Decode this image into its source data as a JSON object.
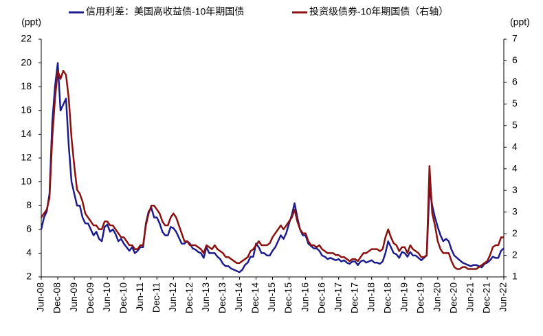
{
  "chart_data": {
    "type": "line",
    "left_unit": "(ppt)",
    "right_unit": "(ppt)",
    "x": [
      "Jun-08",
      "Jul-08",
      "Aug-08",
      "Sep-08",
      "Oct-08",
      "Nov-08",
      "Dec-08",
      "Jan-09",
      "Feb-09",
      "Mar-09",
      "Apr-09",
      "May-09",
      "Jun-09",
      "Jul-09",
      "Aug-09",
      "Sep-09",
      "Oct-09",
      "Nov-09",
      "Dec-09",
      "Jan-10",
      "Feb-10",
      "Mar-10",
      "Apr-10",
      "May-10",
      "Jun-10",
      "Jul-10",
      "Aug-10",
      "Sep-10",
      "Oct-10",
      "Nov-10",
      "Dec-10",
      "Jan-11",
      "Feb-11",
      "Mar-11",
      "Apr-11",
      "May-11",
      "Jun-11",
      "Jul-11",
      "Aug-11",
      "Sep-11",
      "Oct-11",
      "Nov-11",
      "Dec-11",
      "Jan-12",
      "Feb-12",
      "Mar-12",
      "Apr-12",
      "May-12",
      "Jun-12",
      "Jul-12",
      "Aug-12",
      "Sep-12",
      "Oct-12",
      "Nov-12",
      "Dec-12",
      "Jan-13",
      "Feb-13",
      "Mar-13",
      "Apr-13",
      "May-13",
      "Jun-13",
      "Jul-13",
      "Aug-13",
      "Sep-13",
      "Oct-13",
      "Nov-13",
      "Dec-13",
      "Jan-14",
      "Feb-14",
      "Mar-14",
      "Apr-14",
      "May-14",
      "Jun-14",
      "Jul-14",
      "Aug-14",
      "Sep-14",
      "Oct-14",
      "Nov-14",
      "Dec-14",
      "Jan-15",
      "Feb-15",
      "Mar-15",
      "Apr-15",
      "May-15",
      "Jun-15",
      "Jul-15",
      "Aug-15",
      "Sep-15",
      "Oct-15",
      "Nov-15",
      "Dec-15",
      "Jan-16",
      "Feb-16",
      "Mar-16",
      "Apr-16",
      "May-16",
      "Jun-16",
      "Jul-16",
      "Aug-16",
      "Sep-16",
      "Oct-16",
      "Nov-16",
      "Dec-16",
      "Jan-17",
      "Feb-17",
      "Mar-17",
      "Apr-17",
      "May-17",
      "Jun-17",
      "Jul-17",
      "Aug-17",
      "Sep-17",
      "Oct-17",
      "Nov-17",
      "Dec-17",
      "Jan-18",
      "Feb-18",
      "Mar-18",
      "Apr-18",
      "May-18",
      "Jun-18",
      "Jul-18",
      "Aug-18",
      "Sep-18",
      "Oct-18",
      "Nov-18",
      "Dec-18",
      "Jan-19",
      "Feb-19",
      "Mar-19",
      "Apr-19",
      "May-19",
      "Jun-19",
      "Jul-19",
      "Aug-19",
      "Sep-19",
      "Oct-19",
      "Nov-19",
      "Dec-19",
      "Jan-20",
      "Feb-20",
      "Mar-20",
      "Apr-20",
      "May-20",
      "Jun-20",
      "Jul-20",
      "Aug-20",
      "Sep-20",
      "Oct-20",
      "Nov-20",
      "Dec-20",
      "Jan-21",
      "Feb-21",
      "Mar-21",
      "Apr-21",
      "May-21",
      "Jun-21",
      "Jul-21",
      "Aug-21",
      "Sep-21",
      "Oct-21",
      "Nov-21",
      "Dec-21",
      "Jan-22",
      "Feb-22",
      "Mar-22",
      "Apr-22",
      "May-22",
      "Jun-22"
    ],
    "series": [
      {
        "name": "信用利差：美国高收益债-10年期国债",
        "color": "#1c1c8c",
        "axis": "y",
        "values": [
          6,
          7,
          7.5,
          9,
          15,
          18,
          20,
          16,
          16.5,
          17,
          13,
          10,
          9,
          8,
          8,
          7,
          6.5,
          6.5,
          6,
          5.5,
          5.8,
          5.2,
          5,
          6.2,
          6.4,
          5.8,
          6,
          5.6,
          5,
          5.2,
          4.8,
          4.5,
          4.2,
          4.5,
          4,
          4.2,
          4.5,
          4.5,
          6.5,
          7.5,
          7.8,
          7,
          7,
          6.5,
          5.8,
          5.5,
          5.5,
          6.2,
          6.1,
          5.8,
          5.3,
          4.8,
          4.8,
          5,
          4.8,
          4.4,
          4.3,
          4.1,
          4,
          3.6,
          4.5,
          4,
          4,
          4,
          3.7,
          3.5,
          3.1,
          2.9,
          2.9,
          2.7,
          2.6,
          2.5,
          2.4,
          2.6,
          3,
          3.2,
          3.7,
          3.7,
          4.8,
          4.5,
          4,
          4,
          3.8,
          3.8,
          4.2,
          4.5,
          5,
          5.5,
          5.2,
          5.7,
          6.5,
          7.2,
          8.2,
          7,
          6,
          5.5,
          5.5,
          4.8,
          4.6,
          4.4,
          4.4,
          4.2,
          3.8,
          3.7,
          3.5,
          3.6,
          3.5,
          3.4,
          3.5,
          3.3,
          3.4,
          3.2,
          3.1,
          3.3,
          3.3,
          3,
          3.3,
          3.4,
          3.2,
          3.3,
          3.4,
          3.2,
          3.2,
          3.1,
          3.3,
          4,
          5,
          4.5,
          4,
          3.9,
          3.6,
          4.1,
          4,
          3.7,
          4.1,
          3.8,
          3.8,
          3.6,
          3.4,
          3.6,
          3.8,
          9.5,
          8,
          7,
          6.2,
          5.5,
          5,
          5.2,
          5,
          4.3,
          3.8,
          3.6,
          3.4,
          3.2,
          3.1,
          3,
          2.9,
          3,
          3,
          2.9,
          2.8,
          3.1,
          3.2,
          3.4,
          3.7,
          3.6,
          3.6,
          4.2,
          4.4
        ]
      },
      {
        "name": "投资级债券-10年期国债（右轴）",
        "color": "#8b1010",
        "axis": "y2",
        "values": [
          2.5,
          2.6,
          2.7,
          3,
          4.5,
          5.5,
          6.2,
          6,
          6.2,
          6.1,
          5.5,
          4.5,
          3.8,
          3.2,
          3.1,
          2.9,
          2.6,
          2.5,
          2.4,
          2.3,
          2.3,
          2.2,
          2.2,
          2.4,
          2.4,
          2.3,
          2.3,
          2.2,
          2.1,
          2,
          2,
          1.9,
          1.8,
          1.8,
          1.7,
          1.7,
          1.8,
          1.8,
          2.3,
          2.6,
          2.8,
          2.8,
          2.7,
          2.6,
          2.4,
          2.3,
          2.3,
          2.5,
          2.6,
          2.5,
          2.3,
          2.1,
          1.9,
          1.9,
          1.8,
          1.8,
          1.8,
          1.75,
          1.7,
          1.6,
          1.8,
          1.75,
          1.7,
          1.8,
          1.7,
          1.65,
          1.6,
          1.5,
          1.5,
          1.45,
          1.4,
          1.35,
          1.35,
          1.4,
          1.45,
          1.5,
          1.65,
          1.7,
          1.8,
          1.9,
          1.8,
          1.8,
          1.8,
          1.85,
          2,
          2.1,
          2.2,
          2.3,
          2.2,
          2.3,
          2.4,
          2.5,
          2.7,
          2.4,
          2.2,
          2.1,
          2.1,
          1.9,
          1.8,
          1.8,
          1.75,
          1.8,
          1.7,
          1.65,
          1.6,
          1.6,
          1.6,
          1.55,
          1.55,
          1.5,
          1.5,
          1.45,
          1.4,
          1.45,
          1.45,
          1.4,
          1.5,
          1.6,
          1.6,
          1.65,
          1.7,
          1.7,
          1.7,
          1.65,
          1.7,
          2,
          2.2,
          2,
          1.85,
          1.8,
          1.65,
          1.75,
          1.75,
          1.6,
          1.8,
          1.7,
          1.65,
          1.6,
          1.5,
          1.5,
          1.55,
          3.8,
          2.6,
          2.3,
          1.9,
          1.7,
          1.6,
          1.6,
          1.6,
          1.4,
          1.25,
          1.2,
          1.2,
          1.25,
          1.25,
          1.2,
          1.2,
          1.2,
          1.2,
          1.25,
          1.3,
          1.35,
          1.4,
          1.55,
          1.75,
          1.8,
          1.8,
          2,
          2
        ]
      }
    ],
    "ylim": [
      2,
      22
    ],
    "yticks": [
      2,
      4,
      6,
      8,
      10,
      12,
      14,
      16,
      18,
      20,
      22
    ],
    "y2lim": [
      1,
      7
    ],
    "y2ticks": [
      1,
      {
        "value": 1.545,
        "label": "2"
      },
      {
        "value": 2.091,
        "label": "2"
      },
      {
        "value": 2.636,
        "label": "3"
      },
      {
        "value": 3.182,
        "label": "3"
      },
      {
        "value": 3.727,
        "label": "4"
      },
      {
        "value": 4.273,
        "label": "4"
      },
      {
        "value": 4.818,
        "label": "5"
      },
      {
        "value": 5.364,
        "label": "5"
      },
      {
        "value": 5.909,
        "label": "6"
      },
      {
        "value": 6.455,
        "label": "6"
      },
      7
    ],
    "xtick_every": 6,
    "legend": "top",
    "grid": false
  }
}
